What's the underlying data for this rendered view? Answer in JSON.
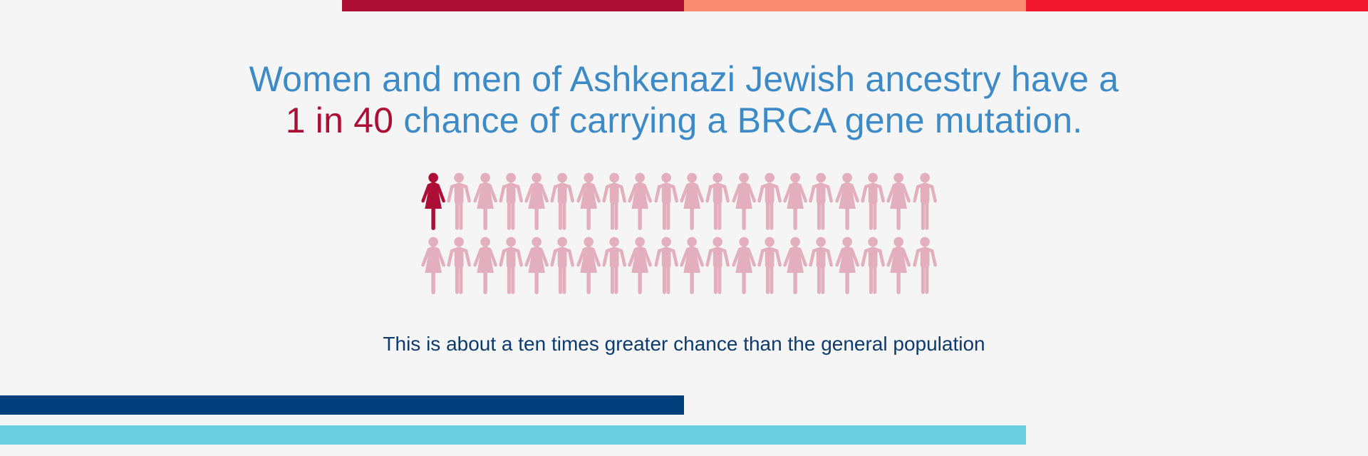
{
  "colors": {
    "background": "#f5f5f5",
    "top_bar_1": "#ad0e35",
    "top_bar_2": "#f98b71",
    "top_bar_3": "#f1172f",
    "bottom_bar_1": "#013f7d",
    "bottom_bar_2": "#6acde0",
    "headline_text": "#3c8bc8",
    "highlight_text": "#ad0e35",
    "subline_text": "#0d3b6e",
    "figure_highlight": "#ad0e35",
    "figure_default": "#e3afbe"
  },
  "headline": {
    "line1": "Women and men of Ashkenazi Jewish ancestry have a",
    "highlight": "1 in 40",
    "line2_rest": " chance of carrying a BRCA gene mutation."
  },
  "figures": {
    "total": 40,
    "highlighted": 1,
    "icon_pattern": [
      "woman-icon",
      "man-icon"
    ]
  },
  "subline": "This is about a ten times greater chance than the general population"
}
